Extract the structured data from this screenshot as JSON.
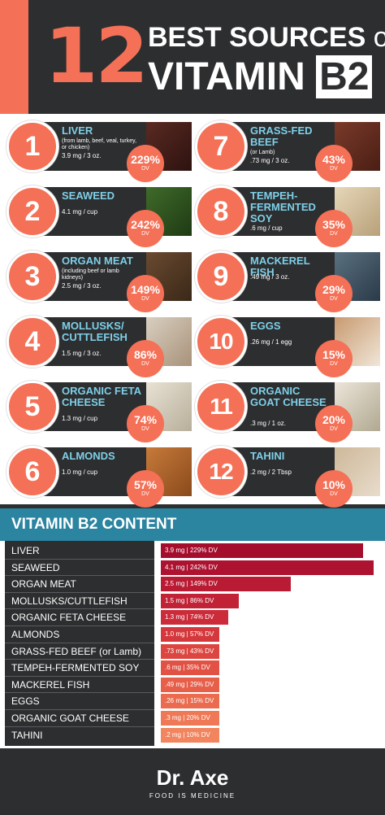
{
  "header": {
    "number": "12",
    "title_line1": "BEST SOURCES",
    "title_of": "of",
    "title_line2_a": "VITAMIN",
    "title_line2_b": "B2"
  },
  "sources": [
    {
      "rank": "1",
      "name": "LIVER",
      "note": "(from lamb, beef, veal, turkey, or chicken)",
      "amount": "3.9 mg / 3 oz.",
      "pct": "229%",
      "dv": "DV"
    },
    {
      "rank": "2",
      "name": "SEAWEED",
      "note": "",
      "amount": "4.1 mg / cup",
      "pct": "242%",
      "dv": "DV"
    },
    {
      "rank": "3",
      "name": "ORGAN MEAT",
      "note": "(including beef or lamb kidneys)",
      "amount": "2.5 mg / 3 oz.",
      "pct": "149%",
      "dv": "DV"
    },
    {
      "rank": "4",
      "name": "MOLLUSKS/ CUTTLEFISH",
      "note": "",
      "amount": "1.5 mg / 3 oz.",
      "pct": "86%",
      "dv": "DV"
    },
    {
      "rank": "5",
      "name": "ORGANIC FETA CHEESE",
      "note": "",
      "amount": "1.3 mg / cup",
      "pct": "74%",
      "dv": "DV"
    },
    {
      "rank": "6",
      "name": "ALMONDS",
      "note": "",
      "amount": "1.0 mg / cup",
      "pct": "57%",
      "dv": "DV"
    },
    {
      "rank": "7",
      "name": "GRASS-FED BEEF",
      "note": "(or Lamb)",
      "amount": ".73 mg / 3 oz.",
      "pct": "43%",
      "dv": "DV"
    },
    {
      "rank": "8",
      "name": "TEMPEH-FERMENTED SOY",
      "note": "",
      "amount": ".6 mg / cup",
      "pct": "35%",
      "dv": "DV"
    },
    {
      "rank": "9",
      "name": "MACKEREL FISH",
      "note": "",
      "amount": ".49 mg / 3 oz.",
      "pct": "29%",
      "dv": "DV"
    },
    {
      "rank": "10",
      "name": "EGGS",
      "note": "",
      "amount": ".26 mg / 1 egg",
      "pct": "15%",
      "dv": "DV"
    },
    {
      "rank": "11",
      "name": "ORGANIC GOAT CHEESE",
      "note": "",
      "amount": ".3 mg / 1 oz.",
      "pct": "20%",
      "dv": "DV"
    },
    {
      "rank": "12",
      "name": "TAHINI",
      "note": "",
      "amount": ".2 mg / 2 Tbsp",
      "pct": "10%",
      "dv": "DV"
    }
  ],
  "chart_data": {
    "type": "bar",
    "title": "VITAMIN B2 CONTENT",
    "categories": [
      "LIVER",
      "SEAWEED",
      "ORGAN MEAT",
      "MOLLUSKS/CUTTLEFISH",
      "ORGANIC FETA CHEESE",
      "ALMONDS",
      "GRASS-FED BEEF (or Lamb)",
      "TEMPEH-FERMENTED SOY",
      "MACKEREL FISH",
      "EGGS",
      "ORGANIC GOAT CHEESE",
      "TAHINI"
    ],
    "series": [
      {
        "values": [
          3.9,
          4.1,
          2.5,
          1.5,
          1.3,
          1.0,
          0.73,
          0.6,
          0.49,
          0.26,
          0.3,
          0.2
        ]
      }
    ],
    "bar_labels": [
      "3.9 mg | 229% DV",
      "4.1 mg | 242% DV",
      "2.5 mg | 149% DV",
      "1.5 mg | 86% DV",
      "1.3 mg | 74% DV",
      "1.0 mg | 57% DV",
      ".73 mg | 43% DV",
      ".6 mg | 35% DV",
      ".49 mg | 29% DV",
      ".26 mg | 15% DV",
      ".3 mg | 20% DV",
      ".2 mg | 10% DV"
    ],
    "bar_colors": [
      "#a50d2d",
      "#ad1230",
      "#b81b33",
      "#c22236",
      "#cc2c3a",
      "#d5383c",
      "#dc4540",
      "#e25244",
      "#e75e49",
      "#eb6b4f",
      "#ef7856",
      "#f2845e"
    ],
    "orientation": "horizontal",
    "xlim": [
      0,
      4.1
    ],
    "grid": false
  },
  "footer": {
    "brand": "Dr. Axe",
    "tagline": "FOOD IS MEDICINE"
  }
}
